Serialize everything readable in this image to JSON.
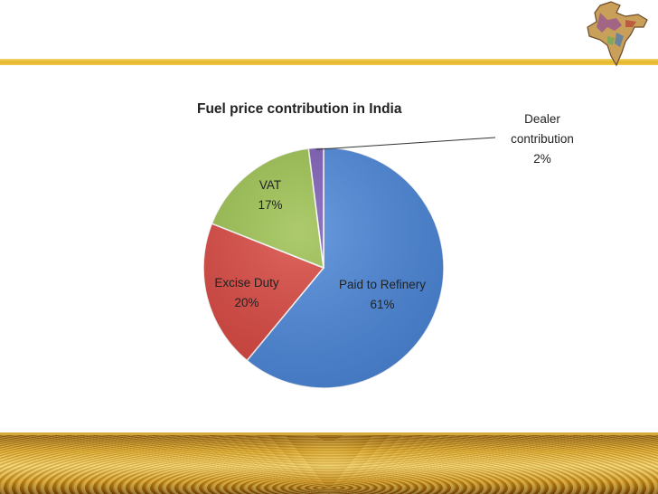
{
  "colors": {
    "accent_bar": "#e4b52a",
    "background": "#ffffff"
  },
  "header": {
    "map_icon": "india-map-icon"
  },
  "chart_data": {
    "type": "pie",
    "title": "Fuel price contribution in India",
    "legend": "none",
    "slices": [
      {
        "label": "Paid to Refinery",
        "percent_label": "61%",
        "value": 61,
        "color": "#4a86d9"
      },
      {
        "label": "Excise Duty",
        "percent_label": "20%",
        "value": 20,
        "color": "#d9453e"
      },
      {
        "label": "VAT",
        "percent_label": "17%",
        "value": 17,
        "color": "#9bc04d"
      },
      {
        "label": "Dealer contribution",
        "percent_label": "2%",
        "value": 2,
        "color": "#7a5bb5"
      }
    ]
  }
}
